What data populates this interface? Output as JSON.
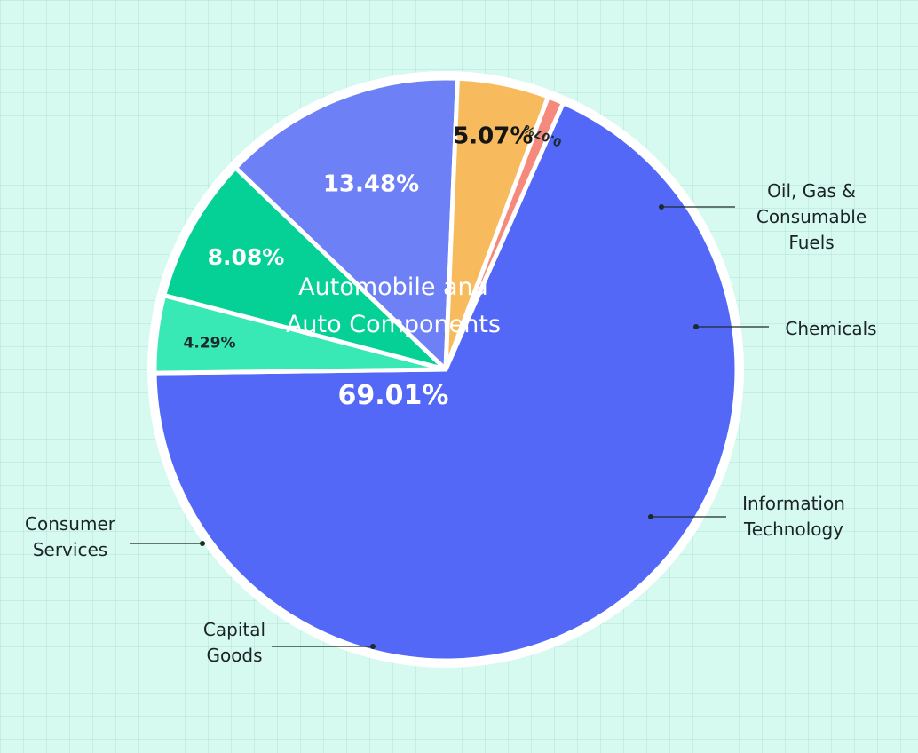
{
  "chart_data": {
    "type": "pie",
    "title": "",
    "categories": [
      "Automobile and Auto Components",
      "Oil, Gas & Consumable Fuels",
      "Chemicals",
      "Information Technology",
      "Capital Goods",
      "Consumer Services"
    ],
    "values": [
      69.01,
      4.29,
      8.08,
      13.48,
      5.07,
      0.07
    ],
    "value_labels": [
      "69.01%",
      "4.29%",
      "8.08%",
      "13.48%",
      "5.07%",
      "0.07%"
    ],
    "colors": [
      "#5468f8",
      "#38e8b5",
      "#05d196",
      "#6d80f5",
      "#f7bb5e",
      "#f58a7c"
    ],
    "legend": "none",
    "grid": false
  }
}
